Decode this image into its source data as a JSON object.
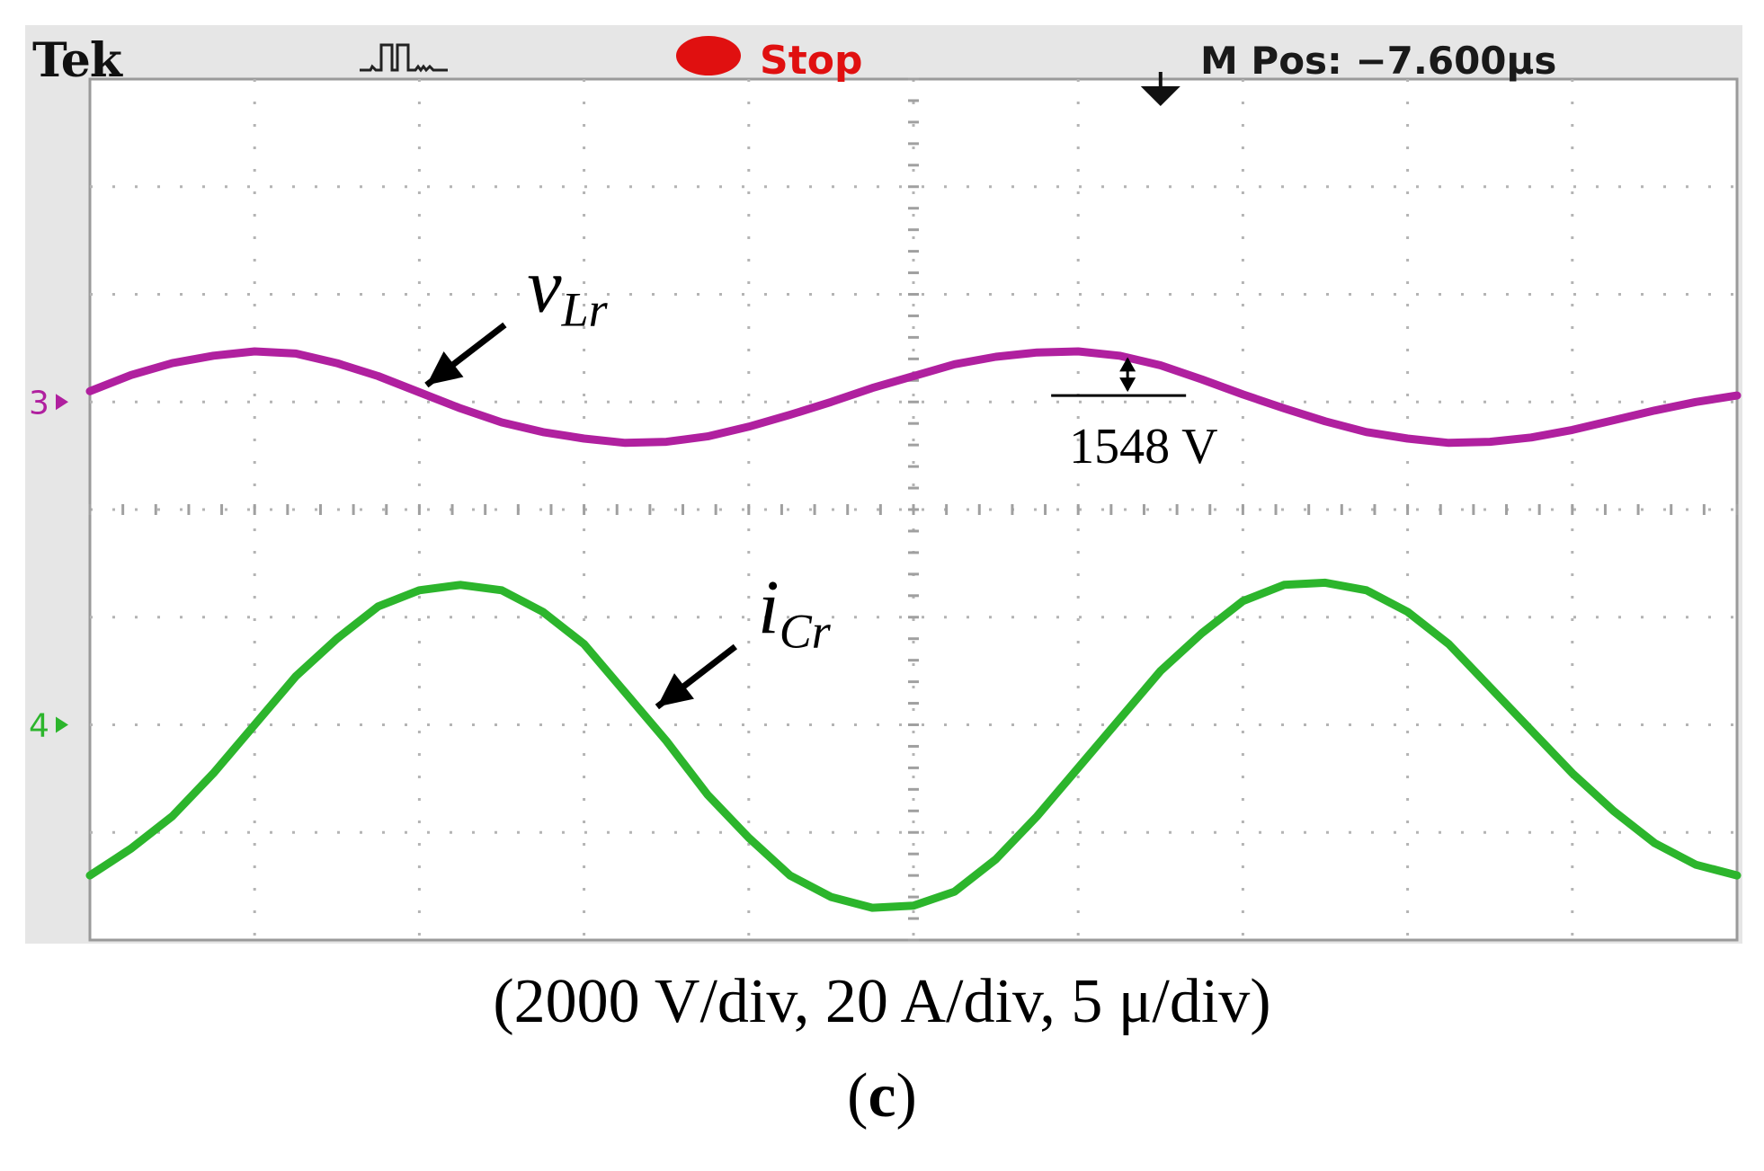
{
  "scope": {
    "brand": "Tek",
    "acquisition_icon": "pulse-waveform-icon",
    "run_state": "Stop",
    "run_state_color": "#e01010",
    "m_pos": "M Pos: −7.600µs",
    "trigger_marker_icon": "trigger-position-arrow-icon"
  },
  "chart_data": {
    "type": "line",
    "grid": true,
    "x_divisions": 10,
    "y_divisions": 8,
    "x": [
      0,
      0.25,
      0.5,
      0.75,
      1,
      1.25,
      1.5,
      1.75,
      2,
      2.25,
      2.5,
      2.75,
      3,
      3.25,
      3.5,
      3.75,
      4,
      4.25,
      4.5,
      4.75,
      5,
      5.25,
      5.5,
      5.75,
      6,
      6.25,
      6.5,
      6.75,
      7,
      7.25,
      7.5,
      7.75,
      8,
      8.25,
      8.5,
      8.75,
      9,
      9.25,
      9.5,
      9.75,
      10
    ],
    "series": [
      {
        "name": "vLr",
        "channel_marker": "3",
        "color": "#b0209f",
        "values": [
          5.1,
          5.25,
          5.36,
          5.43,
          5.47,
          5.45,
          5.36,
          5.24,
          5.09,
          4.94,
          4.81,
          4.72,
          4.66,
          4.62,
          4.63,
          4.68,
          4.77,
          4.88,
          5.0,
          5.13,
          5.24,
          5.35,
          5.42,
          5.46,
          5.47,
          5.43,
          5.34,
          5.21,
          5.07,
          4.94,
          4.82,
          4.72,
          4.66,
          4.62,
          4.63,
          4.67,
          4.74,
          4.83,
          4.92,
          5.0,
          5.06
        ]
      },
      {
        "name": "iCr",
        "channel_marker": "4",
        "color": "#2cb52c",
        "values": [
          0.6,
          0.85,
          1.15,
          1.55,
          2.0,
          2.45,
          2.8,
          3.1,
          3.25,
          3.3,
          3.25,
          3.05,
          2.75,
          2.3,
          1.85,
          1.35,
          0.95,
          0.6,
          0.4,
          0.3,
          0.32,
          0.45,
          0.75,
          1.15,
          1.6,
          2.05,
          2.5,
          2.85,
          3.15,
          3.3,
          3.32,
          3.25,
          3.05,
          2.75,
          2.35,
          1.95,
          1.55,
          1.2,
          0.9,
          0.7,
          0.6
        ]
      }
    ],
    "channel_markers": [
      {
        "label": "3",
        "color": "#b0209f",
        "level": 5
      },
      {
        "label": "4",
        "color": "#2cb52c",
        "level": 2
      }
    ],
    "annotations": [
      {
        "kind": "arrow-label",
        "series": "vLr",
        "label": "v",
        "subscript": "Lr",
        "at": {
          "x": 2.0,
          "y": 5.09
        }
      },
      {
        "kind": "arrow-label",
        "series": "iCr",
        "label": "i",
        "subscript": "Cr",
        "at": {
          "x": 3.4,
          "y": 2.1
        }
      },
      {
        "kind": "amplitude-marker",
        "series": "vLr",
        "label": "1548 V",
        "x": 6.3,
        "y_from": 5.45,
        "y_to": 5.06
      }
    ]
  },
  "caption": "(2000 V/div, 20 A/div, 5 μ/div)",
  "sublabel": {
    "open": "(",
    "letter": "c",
    "close": ")"
  }
}
